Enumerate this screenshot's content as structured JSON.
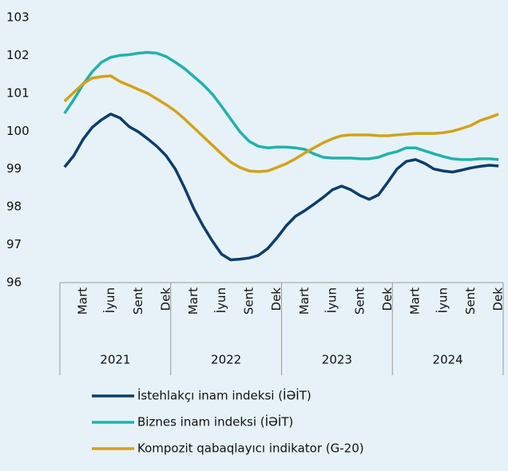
{
  "chart_data": {
    "type": "line",
    "categories": [
      null,
      null,
      "Mart",
      null,
      null,
      "İyun",
      null,
      null,
      "Sent",
      null,
      null,
      "Dek",
      null,
      null,
      "Mart",
      null,
      null,
      "İyun",
      null,
      null,
      "Sent",
      null,
      null,
      "Dek",
      null,
      null,
      "Mart",
      null,
      null,
      "İyun",
      null,
      null,
      "Sent",
      null,
      null,
      "Dek",
      null,
      null,
      "Mart",
      null,
      null,
      "İyun",
      null,
      null,
      "Sent",
      null,
      null,
      "Dek"
    ],
    "year_labels": [
      "2021",
      "2022",
      "2023",
      "2024"
    ],
    "ylim": [
      96,
      103
    ],
    "yticks": [
      96,
      97,
      98,
      99,
      100,
      101,
      102,
      103
    ],
    "series": [
      {
        "name": "İstehlakçı inam indeksi (İƏİT)",
        "color": "#0e3d6b",
        "values": [
          99.05,
          99.35,
          99.78,
          100.1,
          100.3,
          100.45,
          100.35,
          100.12,
          99.98,
          99.8,
          99.6,
          99.35,
          99.0,
          98.5,
          97.95,
          97.5,
          97.1,
          96.75,
          96.6,
          96.62,
          96.65,
          96.72,
          96.9,
          97.18,
          97.5,
          97.75,
          97.9,
          98.07,
          98.25,
          98.45,
          98.55,
          98.45,
          98.3,
          98.2,
          98.32,
          98.65,
          99.0,
          99.2,
          99.25,
          99.15,
          99.0,
          98.95,
          98.92,
          98.97,
          99.03,
          99.07,
          99.1,
          99.08
        ]
      },
      {
        "name": "Biznes inam indeksi (İƏİT)",
        "color": "#22b1ad",
        "values": [
          100.47,
          100.83,
          101.23,
          101.57,
          101.82,
          101.95,
          102.0,
          102.02,
          102.06,
          102.08,
          102.06,
          101.97,
          101.82,
          101.65,
          101.44,
          101.23,
          100.98,
          100.66,
          100.32,
          99.98,
          99.73,
          99.6,
          99.56,
          99.58,
          99.58,
          99.56,
          99.52,
          99.4,
          99.31,
          99.29,
          99.29,
          99.29,
          99.27,
          99.27,
          99.31,
          99.4,
          99.46,
          99.56,
          99.56,
          99.48,
          99.4,
          99.33,
          99.27,
          99.25,
          99.25,
          99.27,
          99.27,
          99.25
        ]
      },
      {
        "name": "Kompozit qabaqlayıcı indikator (G-20)",
        "color": "#d3a21a",
        "values": [
          100.79,
          101.02,
          101.25,
          101.4,
          101.44,
          101.46,
          101.31,
          101.21,
          101.1,
          101.0,
          100.85,
          100.7,
          100.53,
          100.32,
          100.09,
          99.86,
          99.63,
          99.4,
          99.18,
          99.04,
          98.95,
          98.93,
          98.95,
          99.04,
          99.14,
          99.27,
          99.42,
          99.56,
          99.69,
          99.8,
          99.88,
          99.9,
          99.9,
          99.9,
          99.88,
          99.88,
          99.9,
          99.92,
          99.94,
          99.94,
          99.94,
          99.96,
          100.0,
          100.07,
          100.15,
          100.28,
          100.36,
          100.45
        ]
      }
    ]
  }
}
